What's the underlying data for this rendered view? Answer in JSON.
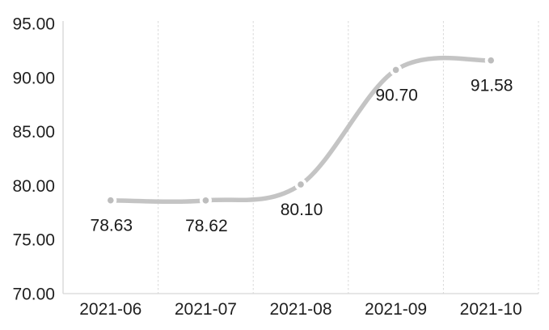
{
  "chart_data": {
    "type": "line",
    "title": "",
    "categories": [
      "2021-06",
      "2021-07",
      "2021-08",
      "2021-09",
      "2021-10"
    ],
    "series": [
      {
        "name": "value",
        "values": [
          78.63,
          78.62,
          80.1,
          90.7,
          91.58
        ],
        "data_labels": [
          "78.63",
          "78.62",
          "80.10",
          "90.70",
          "91.58"
        ]
      }
    ],
    "xlabel": "",
    "ylabel": "",
    "ylim": [
      70,
      95
    ],
    "ytick_step": 5,
    "ytick_labels": [
      "70.00",
      "75.00",
      "80.00",
      "85.00",
      "90.00",
      "95.00"
    ],
    "grid": "vertical-dashed-between-categories",
    "legend_position": "none",
    "smooth_line": true,
    "colors": {
      "background": "#ffffff",
      "line": "#c4c4c4",
      "marker": "#bdbdbd",
      "marker_halo": "#ffffff",
      "axis_line": "#d6d6d6",
      "gridline": "#d9d9d9",
      "tick_label": "#1f1f1f",
      "data_label": "#1a1a1a"
    }
  }
}
